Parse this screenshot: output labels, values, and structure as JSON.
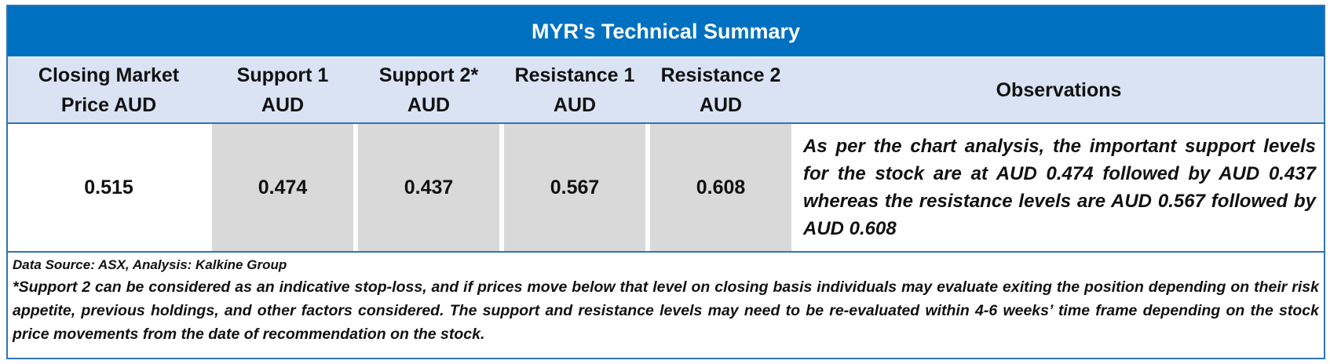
{
  "title": "MYR's Technical Summary",
  "headers": [
    "Closing Market Price AUD",
    "Support 1 AUD",
    "Support 2* AUD",
    "Resistance 1 AUD",
    "Resistance 2 AUD",
    "Observations"
  ],
  "values": {
    "closing_price": "0.515",
    "support1": "0.474",
    "support2": "0.437",
    "resistance1": "0.567",
    "resistance2": "0.608"
  },
  "observation": "As per the chart analysis, the important support levels for the stock are at AUD 0.474 followed by AUD 0.437 whereas the resistance levels are AUD 0.567 followed by AUD 0.608",
  "data_source": "Data Source: ASX, Analysis: Kalkine Group",
  "note": "*Support 2 can be considered as an indicative stop-loss, and if prices move below that level on closing basis individuals may evaluate exiting the position depending on their risk appetite, previous holdings, and other factors considered. The support and resistance levels may need to be re-evaluated within 4-6 weeks’ time frame depending on the stock price movements from the date of recommendation on the stock.",
  "colors": {
    "title_bg": "#0070c0",
    "header_bg": "#dae3f3",
    "cell_gray": "#d9d9d9",
    "border": "#2e75b6"
  }
}
